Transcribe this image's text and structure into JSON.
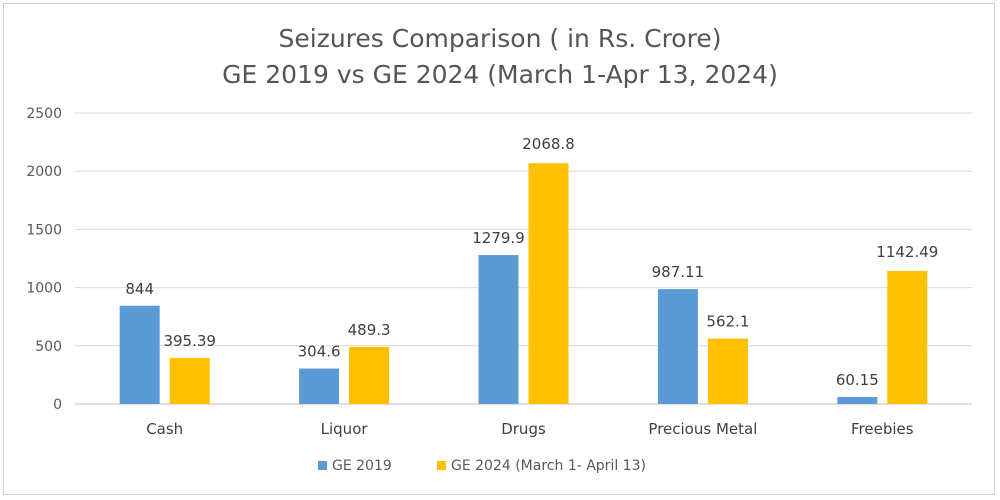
{
  "chart_data": {
    "type": "bar",
    "title": "Seizures Comparison ( in Rs. Crore)",
    "subtitle": "GE 2019 vs  GE 2024 (March 1-Apr 13, 2024)",
    "categories": [
      "Cash",
      "Liquor",
      "Drugs",
      "Precious Metal",
      "Freebies"
    ],
    "series": [
      {
        "name": "GE 2019",
        "color": "#5b9bd5",
        "values": [
          844,
          304.6,
          1279.9,
          987.11,
          60.15
        ],
        "labels": [
          "844",
          "304.6",
          "1279.9",
          "987.11",
          "60.15"
        ]
      },
      {
        "name": "GE 2024 (March 1- April 13)",
        "color": "#ffc000",
        "values": [
          395.39,
          489.3,
          2068.8,
          562.1,
          1142.49
        ],
        "labels": [
          "395.39",
          "489.3",
          "2068.8",
          "562.1",
          "1142.49"
        ]
      }
    ],
    "ylim": [
      0,
      2500
    ],
    "yticks": [
      0,
      500,
      1000,
      1500,
      2000,
      2500
    ],
    "xlabel": "",
    "ylabel": "",
    "grid": true,
    "legend": "bottom"
  }
}
